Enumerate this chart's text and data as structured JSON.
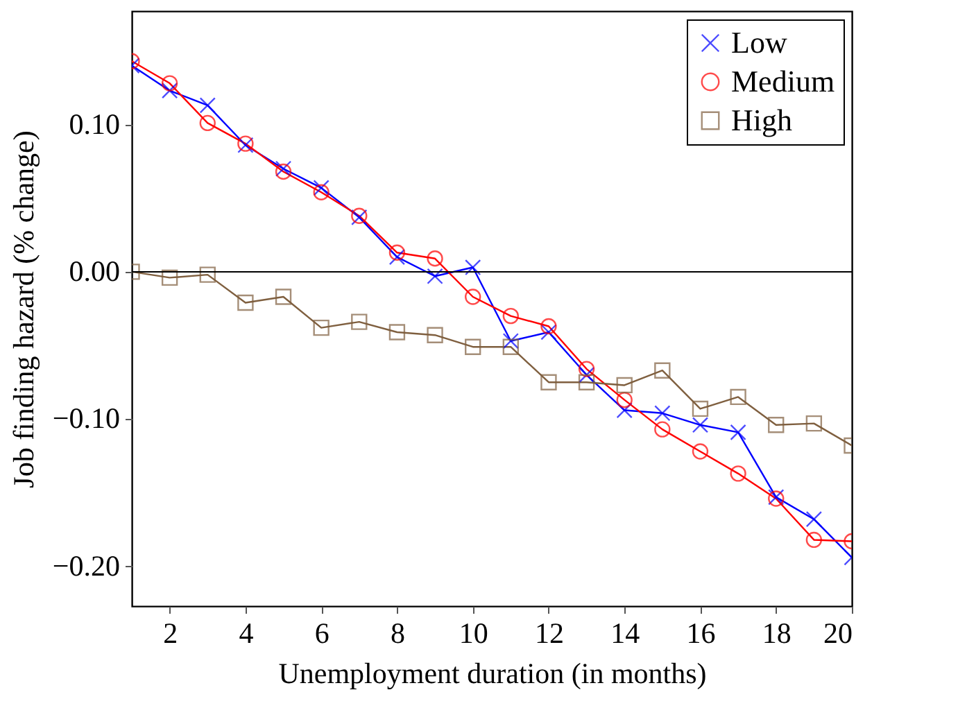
{
  "chart_data": {
    "type": "line",
    "xlabel": "Unemployment duration (in months)",
    "ylabel": "Job finding hazard (% change)",
    "x": [
      1,
      2,
      3,
      4,
      5,
      6,
      7,
      8,
      9,
      10,
      11,
      12,
      13,
      14,
      15,
      16,
      17,
      18,
      19,
      20
    ],
    "series": [
      {
        "name": "Low",
        "color": "#0000ff",
        "marker": "cross",
        "values": [
          0.14,
          0.123,
          0.113,
          0.086,
          0.07,
          0.057,
          0.037,
          0.01,
          -0.003,
          0.003,
          -0.047,
          -0.041,
          -0.07,
          -0.094,
          -0.096,
          -0.104,
          -0.109,
          -0.153,
          -0.168,
          -0.194
        ]
      },
      {
        "name": "Medium",
        "color": "#ff0000",
        "marker": "circle",
        "values": [
          0.143,
          0.128,
          0.101,
          0.087,
          0.068,
          0.054,
          0.038,
          0.013,
          0.009,
          -0.017,
          -0.03,
          -0.037,
          -0.066,
          -0.087,
          -0.107,
          -0.122,
          -0.137,
          -0.154,
          -0.182,
          -0.183
        ]
      },
      {
        "name": "High",
        "color": "#7f5f3f",
        "marker": "square",
        "values": [
          0.0,
          -0.004,
          -0.002,
          -0.021,
          -0.017,
          -0.038,
          -0.034,
          -0.041,
          -0.043,
          -0.051,
          -0.051,
          -0.075,
          -0.075,
          -0.077,
          -0.067,
          -0.093,
          -0.085,
          -0.104,
          -0.103,
          -0.118
        ]
      }
    ],
    "xlim": [
      1,
      20
    ],
    "xticks": [
      2,
      4,
      6,
      8,
      10,
      12,
      14,
      16,
      18,
      20
    ],
    "ylim": [
      -0.227,
      0.177
    ],
    "yticks": [
      {
        "value": -0.2,
        "label": "−0.20"
      },
      {
        "value": -0.1,
        "label": "−0.10"
      },
      {
        "value": 0,
        "label": "0.00"
      },
      {
        "value": 0.1,
        "label": "0.10"
      }
    ],
    "ref_lines": [
      {
        "axis": "y",
        "value": 0,
        "color": "#000000"
      }
    ],
    "grid": false,
    "legend": "top right",
    "line_style": "solid"
  }
}
